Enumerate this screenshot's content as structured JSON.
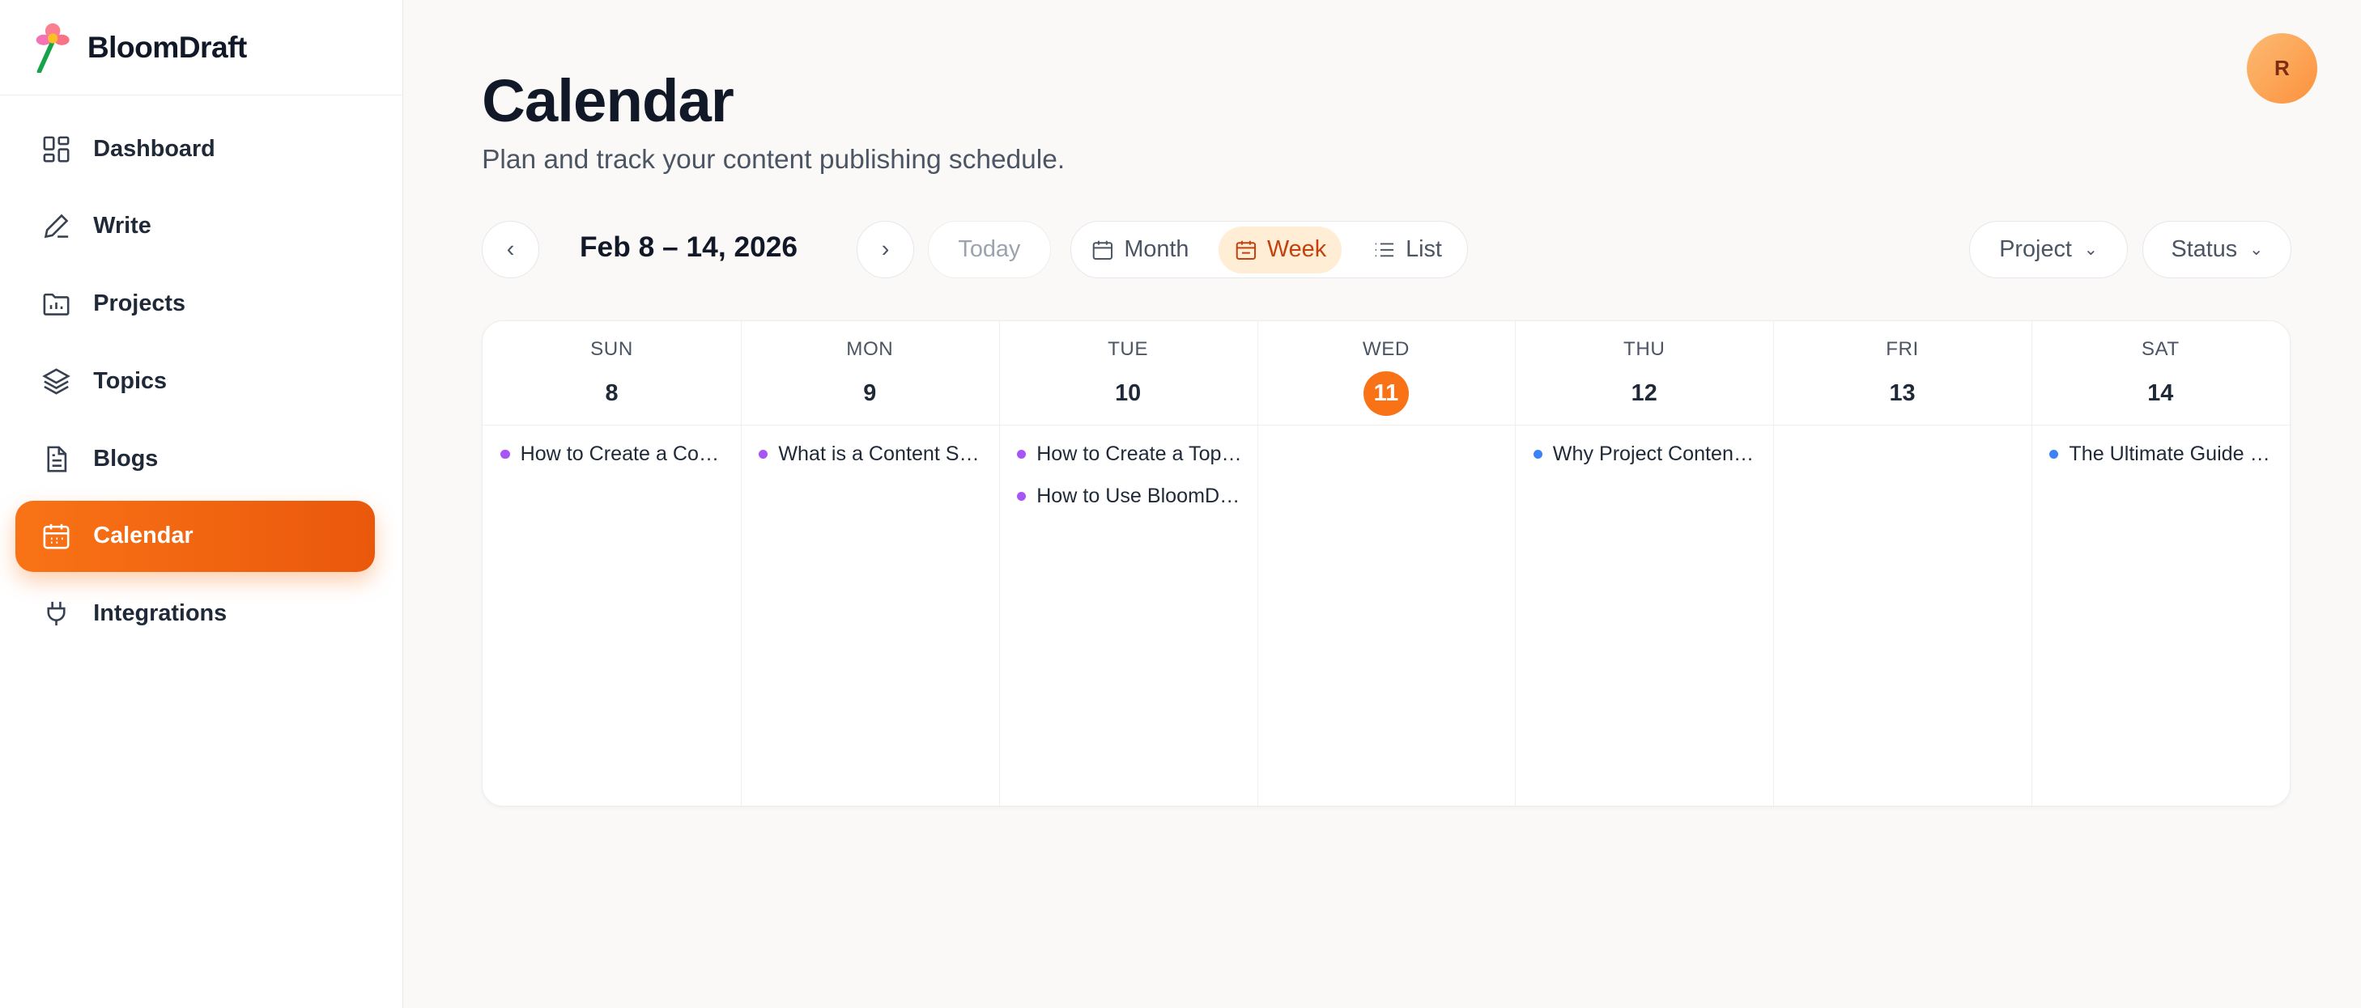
{
  "brand": {
    "name": "BloomDraft"
  },
  "sidebar": {
    "items": [
      {
        "label": "Dashboard",
        "icon": "dashboard-icon"
      },
      {
        "label": "Write",
        "icon": "pen-icon"
      },
      {
        "label": "Projects",
        "icon": "folder-icon"
      },
      {
        "label": "Topics",
        "icon": "layers-icon"
      },
      {
        "label": "Blogs",
        "icon": "document-icon"
      },
      {
        "label": "Calendar",
        "icon": "calendar-icon",
        "active": true
      },
      {
        "label": "Integrations",
        "icon": "plug-icon"
      }
    ]
  },
  "user": {
    "initial": "R"
  },
  "header": {
    "title": "Calendar",
    "subtitle": "Plan and track your content publishing schedule."
  },
  "toolbar": {
    "range": "Feb 8 – 14, 2026",
    "today": "Today",
    "views": [
      "Month",
      "Week",
      "List"
    ],
    "active_view": "Week",
    "filters": [
      "Project",
      "Status"
    ]
  },
  "colors": {
    "accent": "#f97316",
    "purple": "#a855f7",
    "blue": "#3b82f6"
  },
  "week": [
    {
      "dow": "SUN",
      "day": "8",
      "events": [
        {
          "title": "How to Create a Content Calendar",
          "color": "#a855f7"
        }
      ]
    },
    {
      "dow": "MON",
      "day": "9",
      "events": [
        {
          "title": "What is a Content Strategy",
          "color": "#a855f7"
        }
      ]
    },
    {
      "dow": "TUE",
      "day": "10",
      "events": [
        {
          "title": "How to Create a Topic Cluster",
          "color": "#a855f7"
        },
        {
          "title": "How to Use BloomDraft",
          "color": "#a855f7"
        }
      ]
    },
    {
      "dow": "WED",
      "day": "11",
      "today": true,
      "events": []
    },
    {
      "dow": "THU",
      "day": "12",
      "events": [
        {
          "title": "Why Project Content Planning Matters",
          "color": "#3b82f6"
        }
      ]
    },
    {
      "dow": "FRI",
      "day": "13",
      "events": []
    },
    {
      "dow": "SAT",
      "day": "14",
      "events": [
        {
          "title": "The Ultimate Guide to Blogging",
          "color": "#3b82f6"
        }
      ]
    }
  ]
}
